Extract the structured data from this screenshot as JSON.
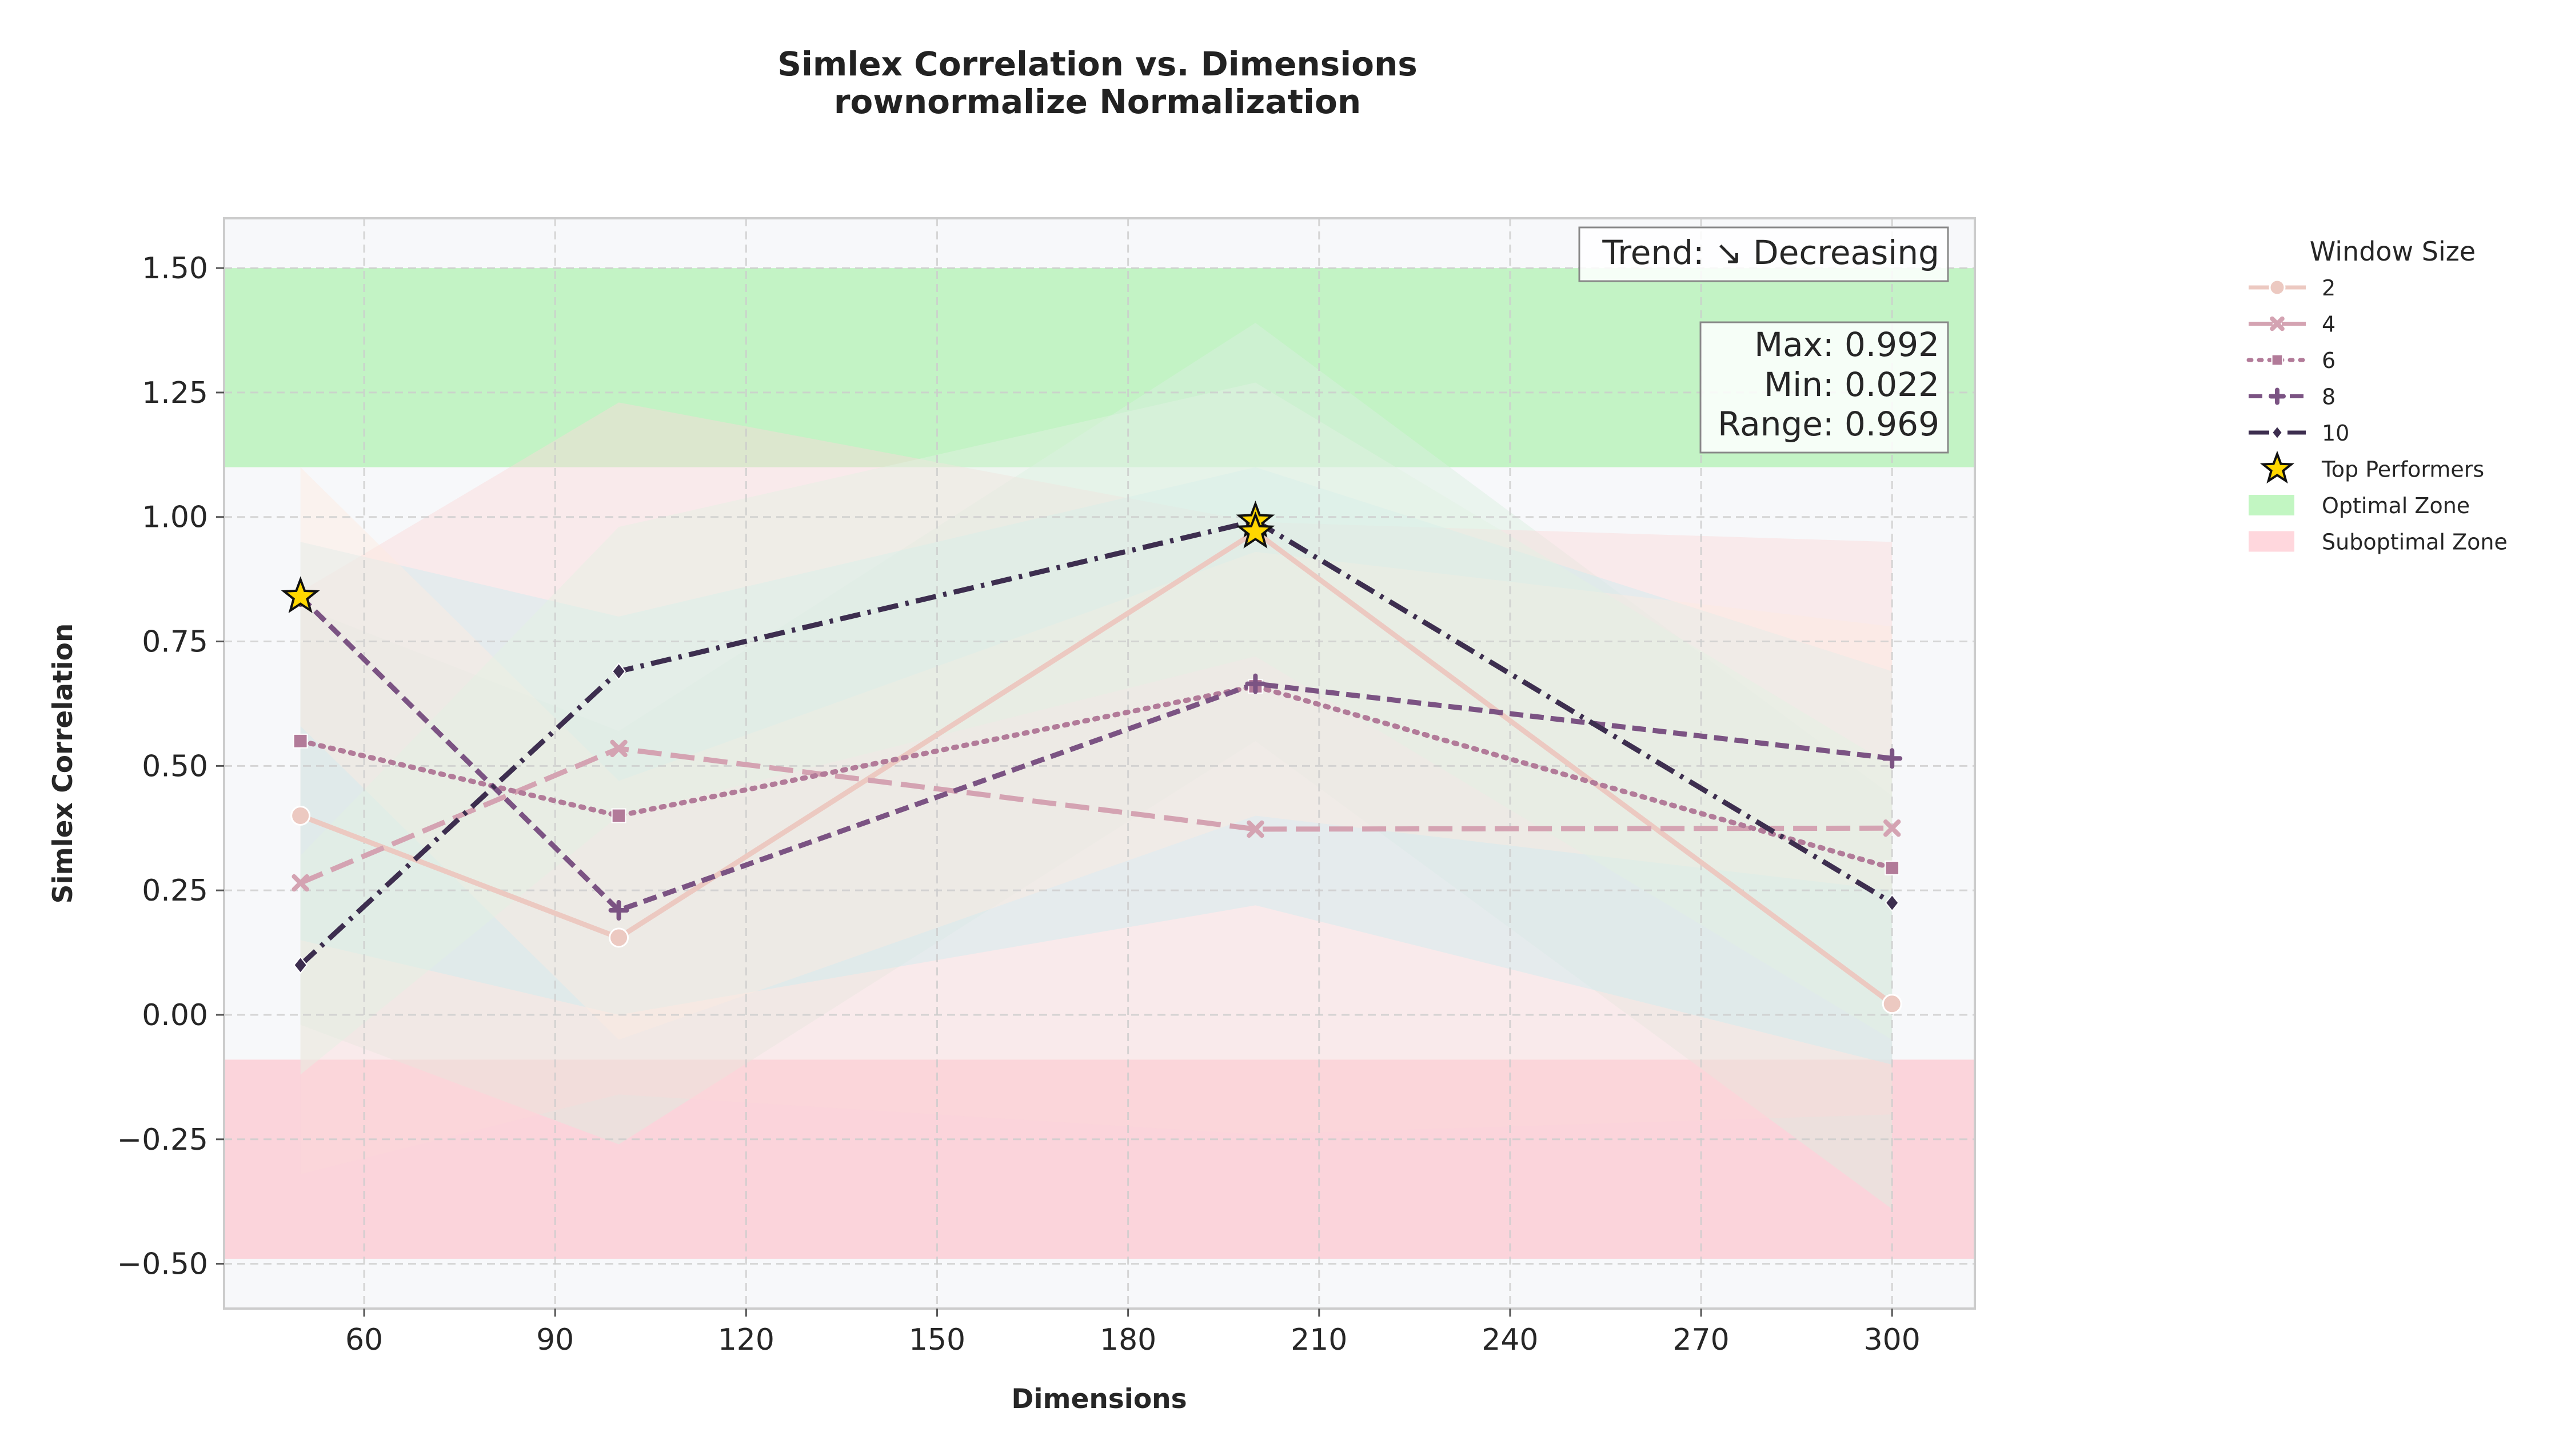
{
  "chart_data": {
    "type": "line",
    "title": "Simlex Correlation vs. Dimensions",
    "subtitle": "rownormalize Normalization",
    "xlabel": "Dimensions",
    "ylabel": "Simlex Correlation",
    "x": [
      50,
      100,
      200,
      300
    ],
    "xlim": [
      38,
      313
    ],
    "ylim": [
      -0.59,
      1.6
    ],
    "xticks": [
      60,
      90,
      120,
      150,
      180,
      210,
      240,
      270,
      300
    ],
    "yticks": [
      1.5,
      1.25,
      1.0,
      0.75,
      0.5,
      0.25,
      0.0,
      -0.25,
      -0.5
    ],
    "ytick_labels": [
      "1.50",
      "1.25",
      "1.00",
      "0.75",
      "0.50",
      "0.25",
      "0.00",
      "−0.25",
      "−0.50"
    ],
    "grid": true,
    "legend_title": "Window Size",
    "legend_position": "outside-right",
    "series": [
      {
        "name": "2",
        "values": [
          0.4,
          0.155,
          0.97,
          0.022
        ],
        "color": "#ecc9c1",
        "dash": "solid",
        "marker": "circle",
        "band_lower": [
          -0.02,
          -0.26,
          0.55,
          -0.39
        ],
        "band_upper": [
          0.82,
          0.57,
          1.39,
          0.44
        ],
        "band_color": "#d9f0e0"
      },
      {
        "name": "4",
        "values": [
          0.265,
          0.535,
          0.373,
          0.375
        ],
        "color": "#d4a3b2",
        "dash": "longdash",
        "marker": "x",
        "band_lower": [
          -0.32,
          -0.16,
          -0.24,
          -0.2
        ],
        "band_upper": [
          0.85,
          1.23,
          0.99,
          0.95
        ],
        "band_color": "#fbdada"
      },
      {
        "name": "6",
        "values": [
          0.55,
          0.4,
          0.66,
          0.295
        ],
        "color": "#b27b99",
        "dash": "dotted",
        "marker": "square",
        "band_lower": [
          0.15,
          0.0,
          0.22,
          -0.1
        ],
        "band_upper": [
          0.95,
          0.8,
          1.1,
          0.69
        ],
        "band_color": "#cdeef0"
      },
      {
        "name": "8",
        "values": [
          0.84,
          0.21,
          0.665,
          0.515
        ],
        "color": "#7b5383",
        "dash": "dashed",
        "marker": "plus",
        "band_lower": [
          0.58,
          -0.05,
          0.4,
          0.25
        ],
        "band_upper": [
          1.1,
          0.47,
          0.93,
          0.78
        ],
        "band_color": "#fdebe0"
      },
      {
        "name": "10",
        "values": [
          0.1,
          0.69,
          0.992,
          0.225
        ],
        "color": "#3d2e4f",
        "dash": "dashdot",
        "marker": "diamond",
        "band_lower": [
          -0.12,
          0.4,
          0.72,
          -0.05
        ],
        "band_upper": [
          0.32,
          0.98,
          1.27,
          0.5
        ],
        "band_color": "#e2f2e3"
      }
    ],
    "top_performers": [
      {
        "x": 50,
        "y": 0.84
      },
      {
        "x": 200,
        "y": 0.992
      },
      {
        "x": 200,
        "y": 0.97
      }
    ],
    "zones": [
      {
        "name": "Optimal Zone",
        "from": 1.1,
        "to": 1.5,
        "color": "#90ee90"
      },
      {
        "name": "Suboptimal Zone",
        "from": -0.49,
        "to": -0.09,
        "color": "#ffb6c1"
      }
    ],
    "annotations": {
      "trend": "Trend: ↘ Decreasing",
      "max": "Max: 0.992",
      "min": "Min: 0.022",
      "range": "Range: 0.969"
    },
    "star_legend_label": "Top Performers",
    "star_color": "#ffd700"
  }
}
